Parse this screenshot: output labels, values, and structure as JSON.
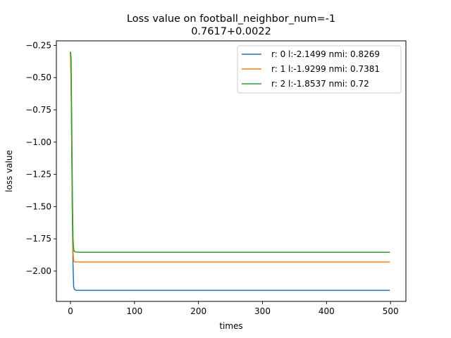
{
  "chart_data": {
    "type": "line",
    "title": [
      "Loss value on football_neighbor_num=-1",
      "0.7617+0.0022"
    ],
    "xlabel": "times",
    "ylabel": "loss value",
    "xlim": [
      -22,
      524
    ],
    "ylim": [
      -2.235,
      -0.215
    ],
    "xticks": [
      0,
      100,
      200,
      300,
      400,
      500
    ],
    "yticks": [
      -2.0,
      -1.75,
      -1.5,
      -1.25,
      -1.0,
      -0.75,
      -0.5,
      -0.25
    ],
    "grid": false,
    "legend_position": "top-right",
    "series": [
      {
        "name": "r: 0 l:-2.1499 nmi: 0.8269",
        "color": "#1f77b4",
        "x": [
          0,
          1,
          2,
          3,
          4,
          5,
          6,
          8,
          10,
          15,
          20,
          50,
          100,
          200,
          300,
          400,
          499
        ],
        "y": [
          -0.3,
          -0.5,
          -1.05,
          -1.6,
          -1.95,
          -2.12,
          -2.14,
          -2.148,
          -2.149,
          -2.15,
          -2.15,
          -2.15,
          -2.15,
          -2.15,
          -2.15,
          -2.15,
          -2.15
        ]
      },
      {
        "name": "r: 1 l:-1.9299 nmi: 0.7381",
        "color": "#ff7f0e",
        "x": [
          0,
          1,
          2,
          3,
          4,
          5,
          6,
          8,
          10,
          15,
          20,
          50,
          100,
          200,
          300,
          400,
          499
        ],
        "y": [
          -0.3,
          -0.55,
          -1.0,
          -1.5,
          -1.85,
          -1.92,
          -1.928,
          -1.929,
          -1.929,
          -1.929,
          -1.93,
          -1.93,
          -1.93,
          -1.93,
          -1.93,
          -1.93,
          -1.93
        ]
      },
      {
        "name": "r: 2 l:-1.8537 nmi: 0.72",
        "color": "#2ca02c",
        "x": [
          0,
          1,
          2,
          3,
          4,
          5,
          6,
          8,
          10,
          15,
          20,
          50,
          100,
          200,
          300,
          400,
          499
        ],
        "y": [
          -0.3,
          -0.35,
          -0.85,
          -1.4,
          -1.75,
          -1.83,
          -1.848,
          -1.852,
          -1.853,
          -1.854,
          -1.854,
          -1.854,
          -1.854,
          -1.854,
          -1.854,
          -1.854,
          -1.854
        ]
      }
    ]
  }
}
